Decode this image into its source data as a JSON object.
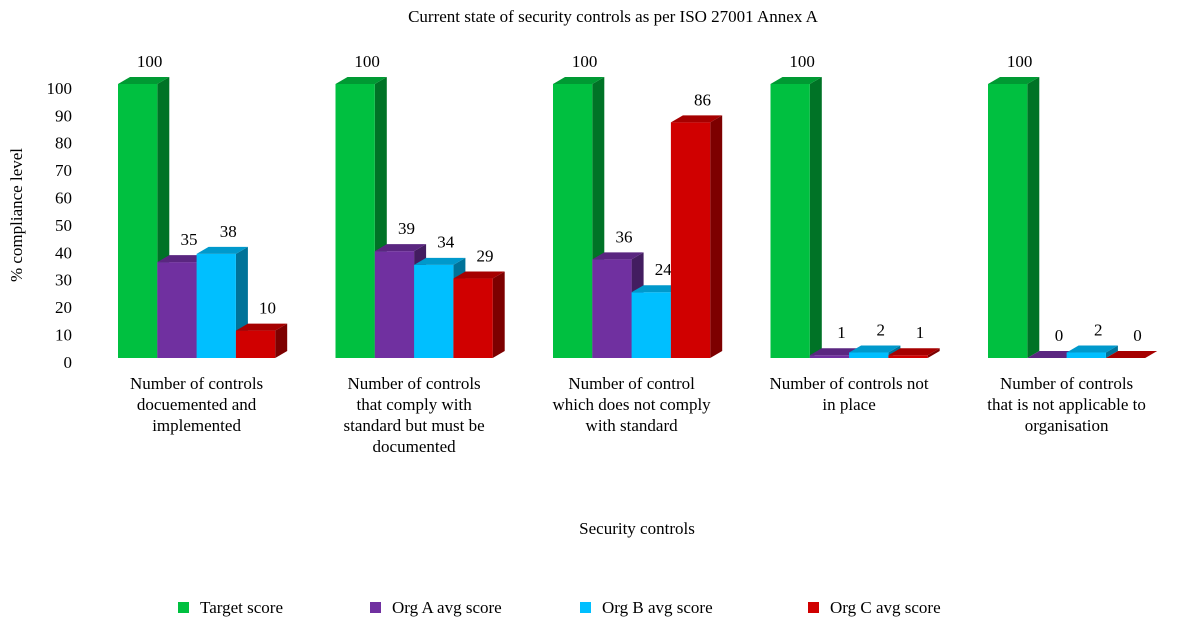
{
  "chart_data": {
    "type": "bar3d",
    "title": "Current state of security controls as per ISO 27001 Annex A",
    "x_label": "Security controls",
    "y_label": "% compliance level",
    "categories": [
      "Number of controls docuemented and implemented",
      "Number of controls that comply with standard but must be documented",
      "Number of control which does not comply with standard",
      "Number of controls not in place",
      "Number of controls that is not applicable to organisation"
    ],
    "series": [
      {
        "name": "Target score",
        "color": "#00c040",
        "values": [
          100,
          100,
          100,
          100,
          100
        ]
      },
      {
        "name": "Org A avg score",
        "color": "#7030a0",
        "values": [
          35,
          39,
          36,
          1,
          0
        ]
      },
      {
        "name": "Org B avg score",
        "color": "#00bfff",
        "values": [
          38,
          34,
          24,
          2,
          2
        ]
      },
      {
        "name": "Org C avg score",
        "color": "#d00000",
        "values": [
          10,
          29,
          86,
          1,
          0
        ]
      }
    ],
    "ylim": [
      0,
      100
    ],
    "yticks": [
      0,
      10,
      20,
      30,
      40,
      50,
      60,
      70,
      80,
      90,
      100
    ],
    "legend": "bottom"
  }
}
